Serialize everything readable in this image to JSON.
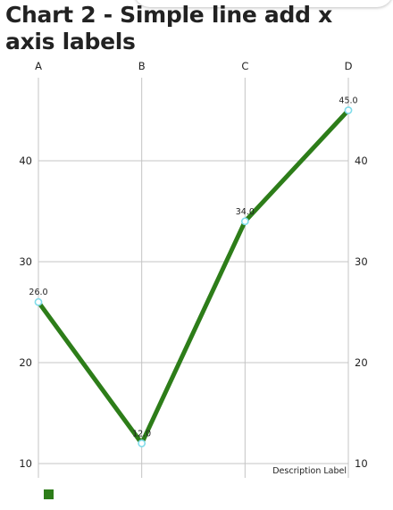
{
  "chart_data": {
    "type": "line",
    "title": "Chart 2 - Simple line add x axis labels",
    "categories": [
      "A",
      "B",
      "C",
      "D"
    ],
    "series": [
      {
        "values": [
          26.0,
          12.0,
          34.0,
          45.0
        ],
        "color": "#2d7d19"
      }
    ],
    "data_labels": [
      "26.0",
      "12.0",
      "34.0",
      "45.0"
    ],
    "y_ticks": [
      10,
      20,
      30,
      40
    ],
    "ylim": [
      10,
      48.3
    ],
    "description": "Description Label",
    "grid": true,
    "x_axis_position": "top",
    "y_axis_labels": "both-sides",
    "legend_position": "bottom-left",
    "circle_color": "#7fdcea",
    "grid_color": "#c4c4c4",
    "title_color": "#222222"
  }
}
